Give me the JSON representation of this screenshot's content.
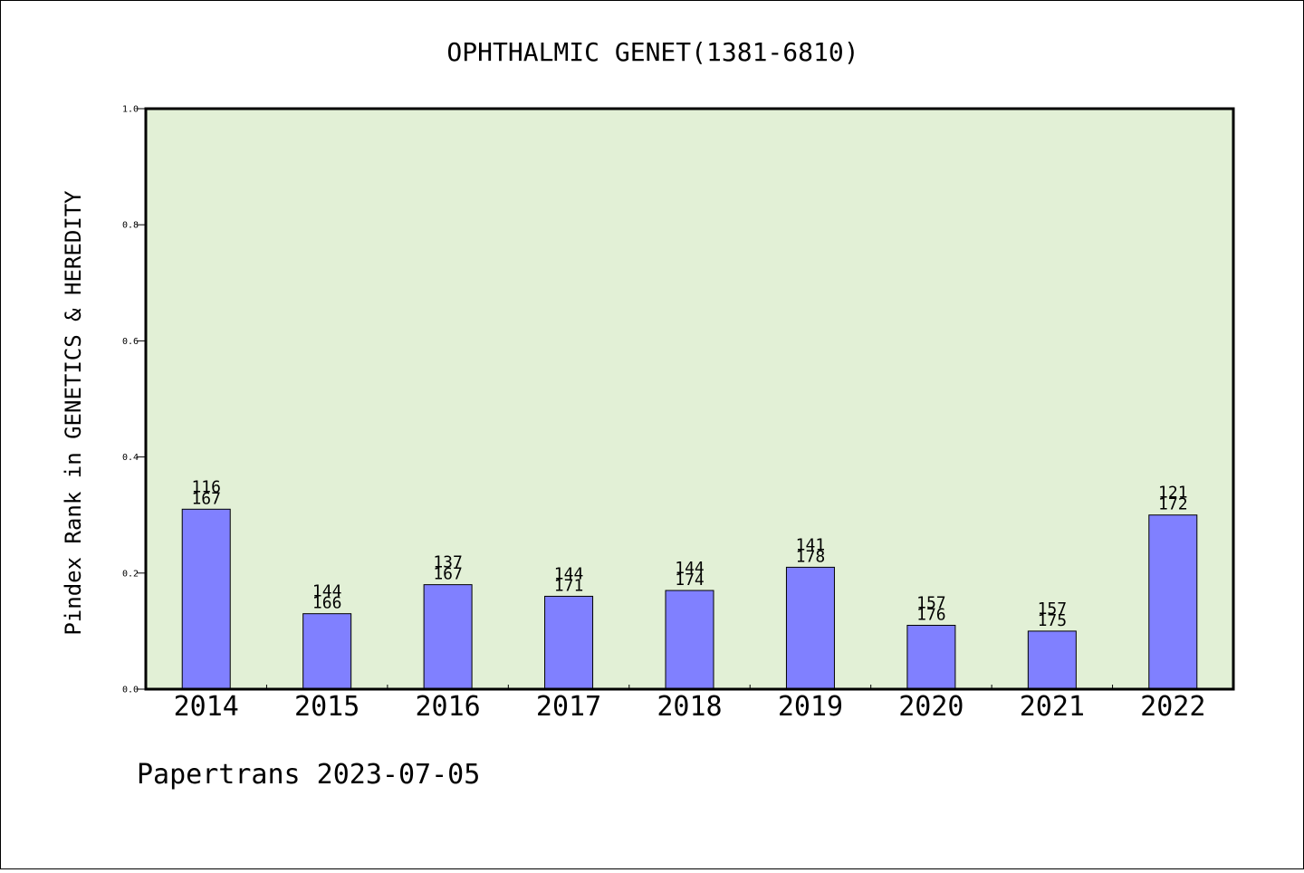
{
  "chart_data": {
    "type": "bar",
    "title": "OPHTHALMIC GENET(1381-6810)",
    "xlabel": "",
    "ylabel": "Pindex Rank in GENETICS & HEREDITY",
    "ylim": [
      0,
      1.0
    ],
    "yticks": [
      "0.0",
      "0.2",
      "0.4",
      "0.6",
      "0.8",
      "1.0"
    ],
    "categories": [
      "2014",
      "2015",
      "2016",
      "2017",
      "2018",
      "2019",
      "2020",
      "2021",
      "2022"
    ],
    "values": [
      0.31,
      0.13,
      0.18,
      0.16,
      0.17,
      0.21,
      0.11,
      0.1,
      0.3
    ],
    "rank_labels": [
      "116",
      "144",
      "137",
      "144",
      "144",
      "141",
      "157",
      "157",
      "121"
    ],
    "total_labels": [
      "167",
      "166",
      "167",
      "171",
      "174",
      "178",
      "176",
      "175",
      "172"
    ],
    "bar_color": "#8080ff",
    "plot_background": "#e2f0d6",
    "grid": false
  },
  "footer": "Papertrans 2023-07-05"
}
